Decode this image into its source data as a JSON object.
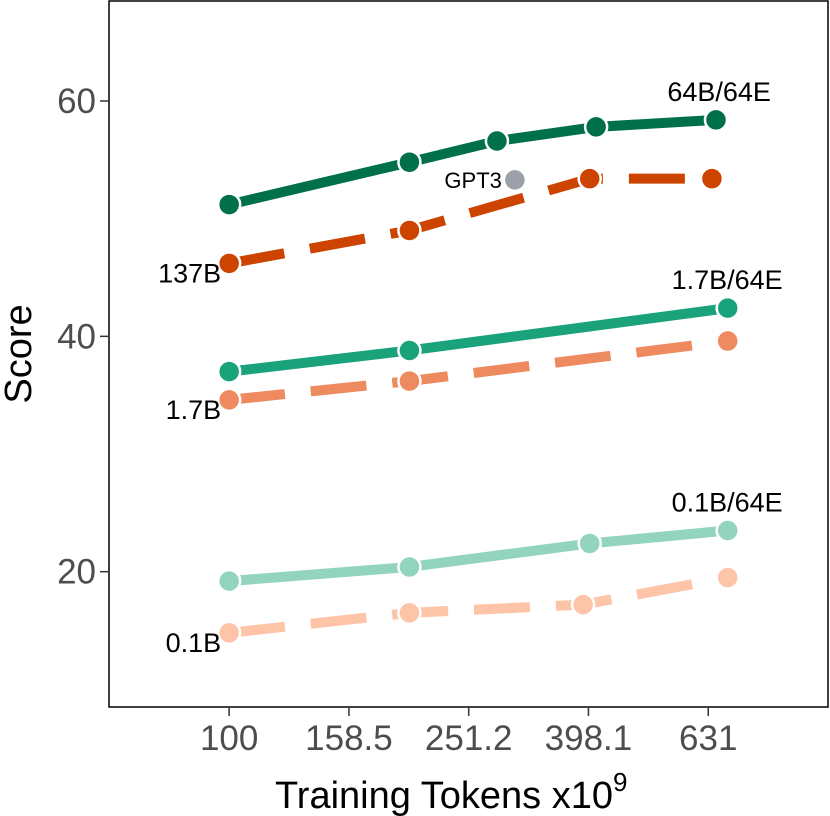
{
  "chart_data": {
    "type": "line",
    "title": "",
    "xlabel": "Training Tokens x10",
    "xlabel_sup": "9",
    "ylabel": "Score",
    "x_scale": "log",
    "xlim": [
      63,
      1000
    ],
    "ylim": [
      8.5,
      68.5
    ],
    "x_ticks": [
      100,
      158.5,
      251.2,
      398.1,
      631
    ],
    "x_tick_labels": [
      "100",
      "158.5",
      "251.2",
      "398.1",
      "631"
    ],
    "y_ticks": [
      20,
      40,
      60
    ],
    "y_tick_labels": [
      "20",
      "40",
      "60"
    ],
    "grid": false,
    "series": [
      {
        "name": "64B/64E",
        "style": "solid",
        "color": "#00704A",
        "x": [
          100,
          200,
          280,
          410,
          650
        ],
        "y": [
          51.2,
          54.8,
          56.6,
          57.8,
          58.4
        ]
      },
      {
        "name": "137B",
        "style": "dashed",
        "color": "#CC4400",
        "x": [
          100,
          200,
          400,
          640
        ],
        "y": [
          46.2,
          49.0,
          53.4,
          53.4
        ]
      },
      {
        "name": "1.7B/64E",
        "style": "solid",
        "color": "#1AA37A",
        "x": [
          100,
          200,
          680
        ],
        "y": [
          37.0,
          38.8,
          42.4
        ]
      },
      {
        "name": "1.7B",
        "style": "dashed",
        "color": "#EE8A60",
        "x": [
          100,
          200,
          680
        ],
        "y": [
          34.6,
          36.2,
          39.6
        ]
      },
      {
        "name": "0.1B/64E",
        "style": "solid",
        "color": "#93D4BE",
        "x": [
          100,
          200,
          400,
          680
        ],
        "y": [
          19.2,
          20.4,
          22.4,
          23.5
        ]
      },
      {
        "name": "0.1B",
        "style": "dashed",
        "color": "#FDC4A8",
        "x": [
          100,
          200,
          390,
          680
        ],
        "y": [
          14.8,
          16.5,
          17.2,
          19.5
        ]
      }
    ],
    "reference_points": [
      {
        "name": "GPT3",
        "x": 300,
        "y": 53.3,
        "color": "#9BA1A6"
      }
    ]
  }
}
